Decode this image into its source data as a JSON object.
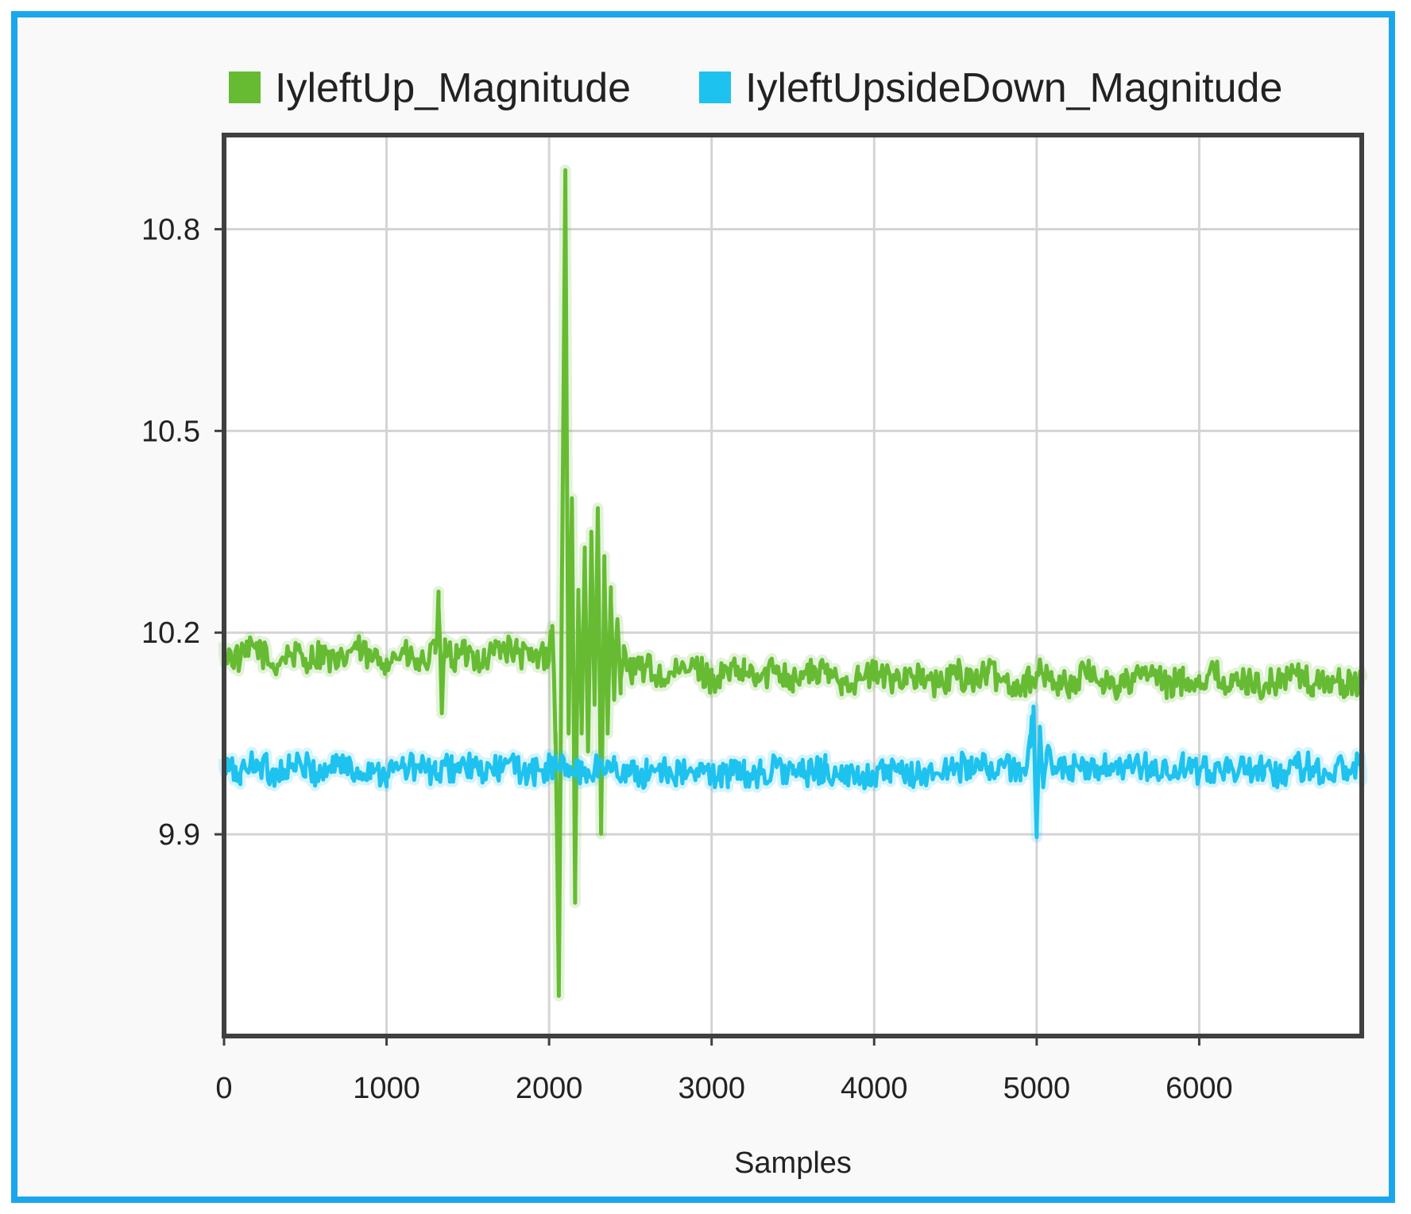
{
  "chart_data": {
    "type": "line",
    "title": "",
    "xlabel": "Samples",
    "ylabel": "",
    "xlim": [
      0,
      7000
    ],
    "ylim": [
      9.6,
      10.94
    ],
    "x_ticks": [
      0,
      1000,
      2000,
      3000,
      4000,
      5000,
      6000
    ],
    "x_tick_labels": [
      "0",
      "1000",
      "2000",
      "3000",
      "4000",
      "5000",
      "6000"
    ],
    "y_ticks": [
      9.9,
      10.2,
      10.5,
      10.8
    ],
    "y_tick_labels": [
      "9.9",
      "10.2",
      "10.5",
      "10.8"
    ],
    "grid": true,
    "legend_position": "top",
    "series": [
      {
        "name": "IyleftUp_Magnitude",
        "color": "#66bb33",
        "x": [
          0,
          100,
          200,
          300,
          400,
          500,
          600,
          700,
          800,
          900,
          1000,
          1100,
          1200,
          1300,
          1320,
          1340,
          1360,
          1400,
          1500,
          1600,
          1700,
          1800,
          1900,
          2000,
          2020,
          2040,
          2060,
          2080,
          2100,
          2120,
          2140,
          2160,
          2180,
          2200,
          2220,
          2240,
          2260,
          2280,
          2300,
          2320,
          2340,
          2360,
          2380,
          2400,
          2420,
          2440,
          2460,
          2500,
          2600,
          2700,
          2800,
          2900,
          3000,
          3100,
          3200,
          3300,
          3400,
          3500,
          3600,
          3700,
          3800,
          3900,
          4000,
          4100,
          4200,
          4300,
          4400,
          4500,
          4600,
          4700,
          4800,
          4900,
          5000,
          5100,
          5200,
          5300,
          5400,
          5500,
          5600,
          5700,
          5800,
          5900,
          6000,
          6100,
          6200,
          6300,
          6400,
          6500,
          6600,
          6700,
          6800,
          6900,
          7000
        ],
        "values": [
          10.17,
          10.16,
          10.18,
          10.15,
          10.17,
          10.16,
          10.17,
          10.15,
          10.18,
          10.16,
          10.16,
          10.17,
          10.15,
          10.17,
          10.24,
          10.08,
          10.19,
          10.16,
          10.17,
          10.16,
          10.18,
          10.17,
          10.16,
          10.17,
          10.21,
          10.05,
          9.67,
          10.3,
          10.88,
          10.05,
          10.4,
          9.82,
          10.25,
          10.05,
          10.31,
          10.03,
          10.35,
          10.1,
          10.38,
          9.91,
          10.3,
          10.05,
          10.25,
          10.1,
          10.22,
          10.13,
          10.18,
          10.14,
          10.15,
          10.13,
          10.14,
          10.15,
          10.13,
          10.14,
          10.14,
          10.13,
          10.15,
          10.13,
          10.14,
          10.14,
          10.13,
          10.13,
          10.14,
          10.13,
          10.14,
          10.13,
          10.12,
          10.14,
          10.13,
          10.14,
          10.13,
          10.12,
          10.14,
          10.13,
          10.12,
          10.14,
          10.13,
          10.12,
          10.13,
          10.14,
          10.12,
          10.13,
          10.13,
          10.14,
          10.12,
          10.13,
          10.12,
          10.13,
          10.14,
          10.12,
          10.13,
          10.12,
          10.13
        ]
      },
      {
        "name": "IyleftUpsideDown_Magnitude",
        "color": "#1ec2ef",
        "x": [
          0,
          100,
          200,
          300,
          400,
          500,
          600,
          700,
          800,
          900,
          1000,
          1100,
          1200,
          1300,
          1400,
          1500,
          1600,
          1700,
          1800,
          1900,
          2000,
          2100,
          2200,
          2300,
          2400,
          2500,
          2600,
          2700,
          2800,
          2900,
          3000,
          3100,
          3200,
          3300,
          3400,
          3500,
          3600,
          3700,
          3800,
          3900,
          4000,
          4100,
          4200,
          4300,
          4400,
          4500,
          4600,
          4700,
          4800,
          4900,
          4960,
          4980,
          5000,
          5020,
          5040,
          5060,
          5100,
          5200,
          5300,
          5400,
          5500,
          5600,
          5700,
          5800,
          5900,
          6000,
          6100,
          6200,
          6300,
          6400,
          6500,
          6600,
          6700,
          6800,
          6900,
          7000
        ],
        "values": [
          10.0,
          9.99,
          10.01,
          9.99,
          10.0,
          10.0,
          9.99,
          10.01,
          9.99,
          10.0,
          9.99,
          10.0,
          10.0,
          9.99,
          10.0,
          10.0,
          9.99,
          10.0,
          10.0,
          9.99,
          10.0,
          10.0,
          9.99,
          10.0,
          10.0,
          9.99,
          9.99,
          10.0,
          9.99,
          9.99,
          9.99,
          9.99,
          9.99,
          9.99,
          10.0,
          9.99,
          9.99,
          10.0,
          9.98,
          9.99,
          9.99,
          9.99,
          9.99,
          9.99,
          9.99,
          10.0,
          10.0,
          10.0,
          10.0,
          9.99,
          10.03,
          10.09,
          9.91,
          10.06,
          9.97,
          10.02,
          9.99,
          10.0,
          9.99,
          10.0,
          9.99,
          10.0,
          10.0,
          9.99,
          10.0,
          9.99,
          10.0,
          10.0,
          9.99,
          10.0,
          9.99,
          10.0,
          10.0,
          9.99,
          10.0,
          10.0
        ]
      }
    ]
  }
}
